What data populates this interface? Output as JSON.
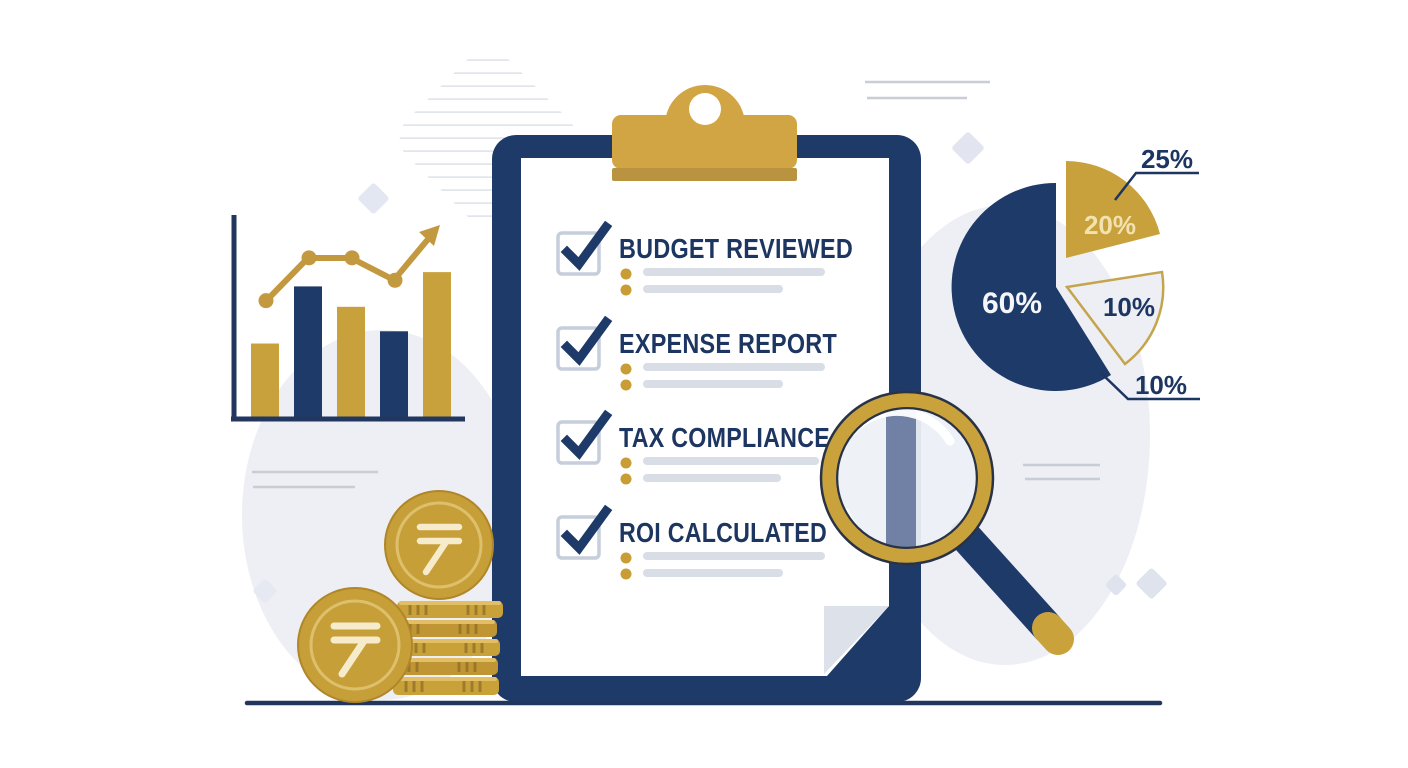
{
  "illustration": {
    "checklist": {
      "items": [
        {
          "label": "BUDGET REVIEWED",
          "checked": true,
          "bullet_lines": 2
        },
        {
          "label": "EXPENSE REPORT",
          "checked": true,
          "bullet_lines": 2
        },
        {
          "label": "TAX COMPLIANCE",
          "checked": true,
          "bullet_lines": 2
        },
        {
          "label": "ROI CALCULATED",
          "checked": true,
          "bullet_lines": 2
        }
      ]
    },
    "pie": {
      "slices": [
        {
          "label": "60%",
          "value": 60,
          "color": "#1e3a69"
        },
        {
          "label": "20%",
          "value": 20,
          "color": "#c9a13c"
        },
        {
          "label": "10%",
          "value": 10,
          "color": "#edeff4"
        }
      ],
      "callouts": [
        {
          "label": "25%",
          "points_to": "gold-slice"
        },
        {
          "label": "10%",
          "points_to": "navy-slice-edge"
        }
      ]
    },
    "coins": {
      "currency_symbol": "₹",
      "face_coins": 2,
      "stacked_coins": 5
    },
    "colors": {
      "navy": "#1e3a69",
      "navy_text": "#1d3561",
      "gold": "#c9a13c",
      "clip_gold": "#d1a543",
      "coin_gold": "#c79f38",
      "blob_gray": "#edeff4",
      "bullet_line_gray": "#d8dde6",
      "fold_gray": "#dde1e9"
    }
  },
  "chart_data": [
    {
      "type": "bar",
      "title": "",
      "categories": [
        "",
        "",
        "",
        "",
        ""
      ],
      "values_pct": [
        37,
        65,
        55,
        43,
        72
      ],
      "bar_colors": [
        "gold",
        "navy",
        "gold",
        "navy",
        "gold"
      ],
      "trend_line_pct": [
        58,
        79,
        79,
        68
      ],
      "trend_arrow_tip_pct": 92,
      "xlabel": "",
      "ylabel": "",
      "grid": false,
      "axis_color": "#21375f"
    },
    {
      "type": "pie",
      "title": "",
      "labels": [
        "60%",
        "20%",
        "10%"
      ],
      "values": [
        60,
        20,
        10
      ],
      "colors": [
        "#1e3a69",
        "#c9a13c",
        "#edeff4"
      ],
      "callout_labels": [
        "25%",
        "10%"
      ],
      "exploded": [
        false,
        true,
        true
      ],
      "legend_position": "none"
    }
  ]
}
